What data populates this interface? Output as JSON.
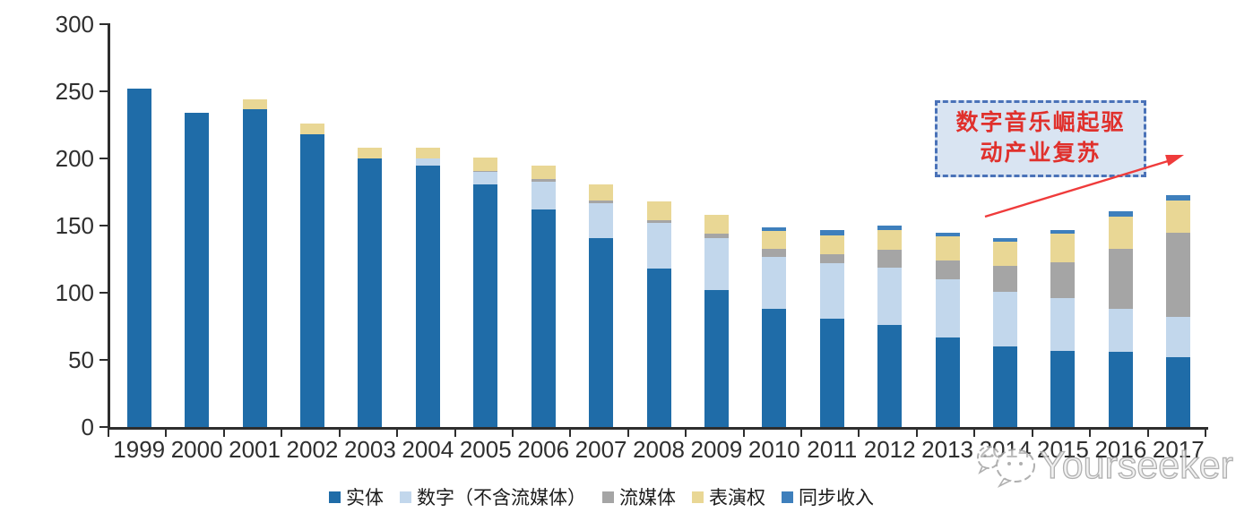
{
  "chart_data": {
    "type": "bar",
    "stacked": true,
    "grid": false,
    "legend_position": "bottom",
    "ylim": [
      0,
      300
    ],
    "yticks": [
      0,
      50,
      100,
      150,
      200,
      250,
      300
    ],
    "categories": [
      "1999",
      "2000",
      "2001",
      "2002",
      "2003",
      "2004",
      "2005",
      "2006",
      "2007",
      "2008",
      "2009",
      "2010",
      "2011",
      "2012",
      "2013",
      "2014",
      "2015",
      "2016",
      "2017"
    ],
    "series": [
      {
        "name": "实体",
        "color": "#1f6ca8",
        "values": [
          252,
          234,
          237,
          218,
          200,
          195,
          181,
          162,
          141,
          118,
          102,
          88,
          81,
          76,
          67,
          60,
          57,
          56,
          52
        ]
      },
      {
        "name": "数字（不含流媒体）",
        "color": "#c2d7ec",
        "values": [
          0,
          0,
          0,
          0,
          0,
          5,
          9,
          21,
          26,
          34,
          39,
          39,
          41,
          43,
          43,
          41,
          39,
          32,
          30
        ]
      },
      {
        "name": "流媒体",
        "color": "#a5a5a5",
        "values": [
          0,
          0,
          0,
          0,
          0,
          0,
          1,
          2,
          2,
          2,
          3,
          6,
          7,
          13,
          14,
          19,
          27,
          45,
          63
        ]
      },
      {
        "name": "表演权",
        "color": "#e9d795",
        "values": [
          0,
          0,
          7,
          8,
          8,
          8,
          10,
          10,
          12,
          14,
          14,
          13,
          14,
          15,
          18,
          18,
          21,
          24,
          24
        ]
      },
      {
        "name": "同步收入",
        "color": "#3e7fbc",
        "values": [
          0,
          0,
          0,
          0,
          0,
          0,
          0,
          0,
          0,
          0,
          0,
          3,
          4,
          3,
          3,
          3,
          3,
          4,
          4
        ]
      }
    ]
  },
  "annotation": {
    "line1": "数字音乐崛起驱",
    "line2": "动产业复苏",
    "border_color": "#4a72b8",
    "fill_color": "#d9e4f2",
    "text_color": "#e0302c",
    "arrow_color": "#ef3b3b"
  },
  "watermark": {
    "text": "Yourseeker"
  }
}
